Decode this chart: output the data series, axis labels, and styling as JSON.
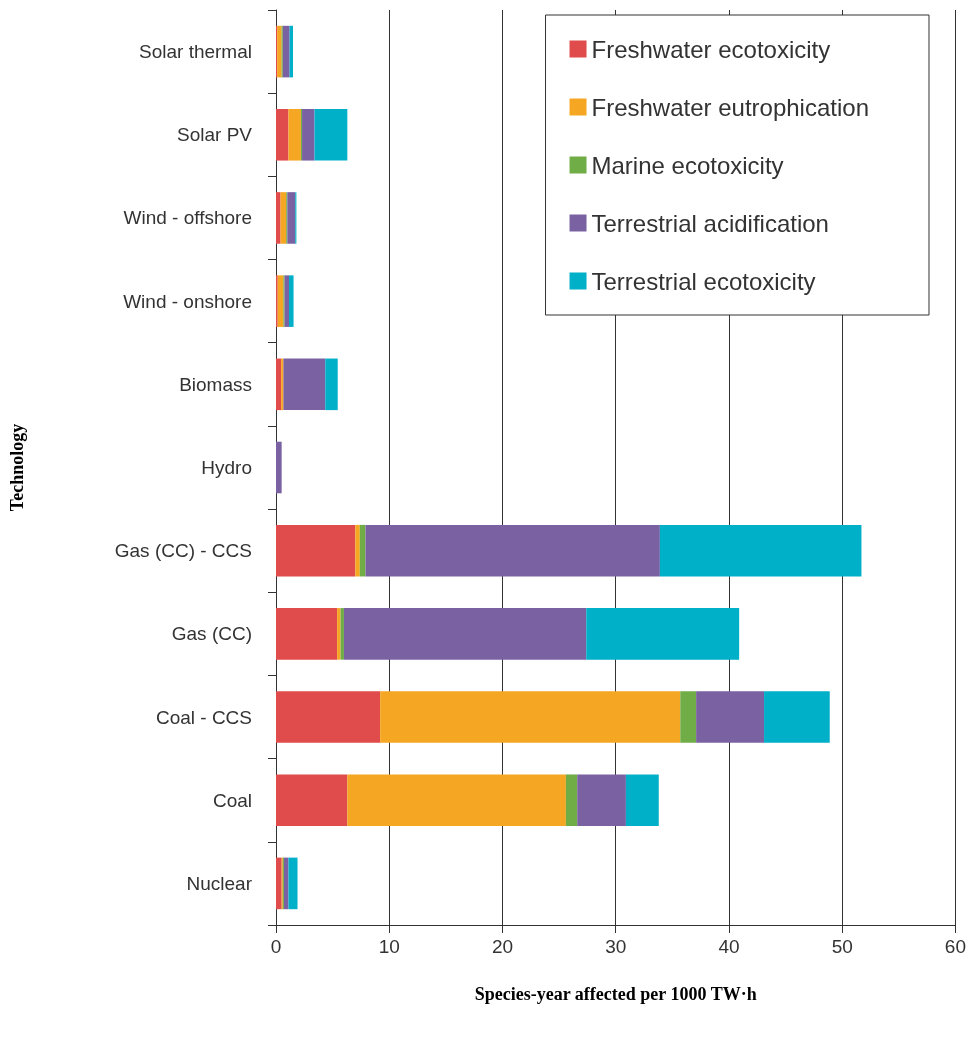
{
  "chart_data": {
    "type": "bar",
    "orientation": "horizontal",
    "stacked": true,
    "xlabel": "Species-year affected per 1000 TW·h",
    "ylabel": "Technology",
    "categories": [
      "Solar thermal",
      "Solar PV",
      "Wind - offshore",
      "Wind - onshore",
      "Biomass",
      "Hydro",
      "Gas (CC) - CCS",
      "Gas (CC)",
      "Coal - CCS",
      "Coal",
      "Nuclear"
    ],
    "series": [
      {
        "name": "Freshwater ecotoxicity",
        "color": "#e04b4b",
        "values": [
          0.1,
          1.1,
          0.4,
          0.15,
          0.45,
          0,
          7.0,
          5.4,
          9.2,
          6.3,
          0.5
        ]
      },
      {
        "name": "Freshwater eutrophication",
        "color": "#f5a623",
        "values": [
          0.4,
          1.1,
          0.5,
          0.5,
          0.2,
          0,
          0.4,
          0.3,
          26.5,
          19.3,
          0.1
        ]
      },
      {
        "name": "Marine ecotoxicity",
        "color": "#70ad47",
        "values": [
          0.1,
          0.1,
          0.1,
          0.1,
          0,
          0,
          0.5,
          0.3,
          1.4,
          1.0,
          0.1
        ]
      },
      {
        "name": "Terrestrial acidification",
        "color": "#7a62a2",
        "values": [
          0.6,
          1.1,
          0.7,
          0.4,
          3.7,
          0.5,
          26.0,
          21.4,
          6.0,
          4.3,
          0.4
        ]
      },
      {
        "name": "Terrestrial ecotoxicity",
        "color": "#00afc8",
        "values": [
          0.3,
          2.9,
          0.1,
          0.4,
          1.1,
          0,
          17.8,
          13.5,
          5.8,
          2.9,
          0.8
        ]
      }
    ],
    "xlim": [
      0,
      60
    ],
    "xticks": [
      0,
      10,
      20,
      30,
      40,
      50,
      60
    ],
    "grid": "x",
    "legend": "top right"
  }
}
